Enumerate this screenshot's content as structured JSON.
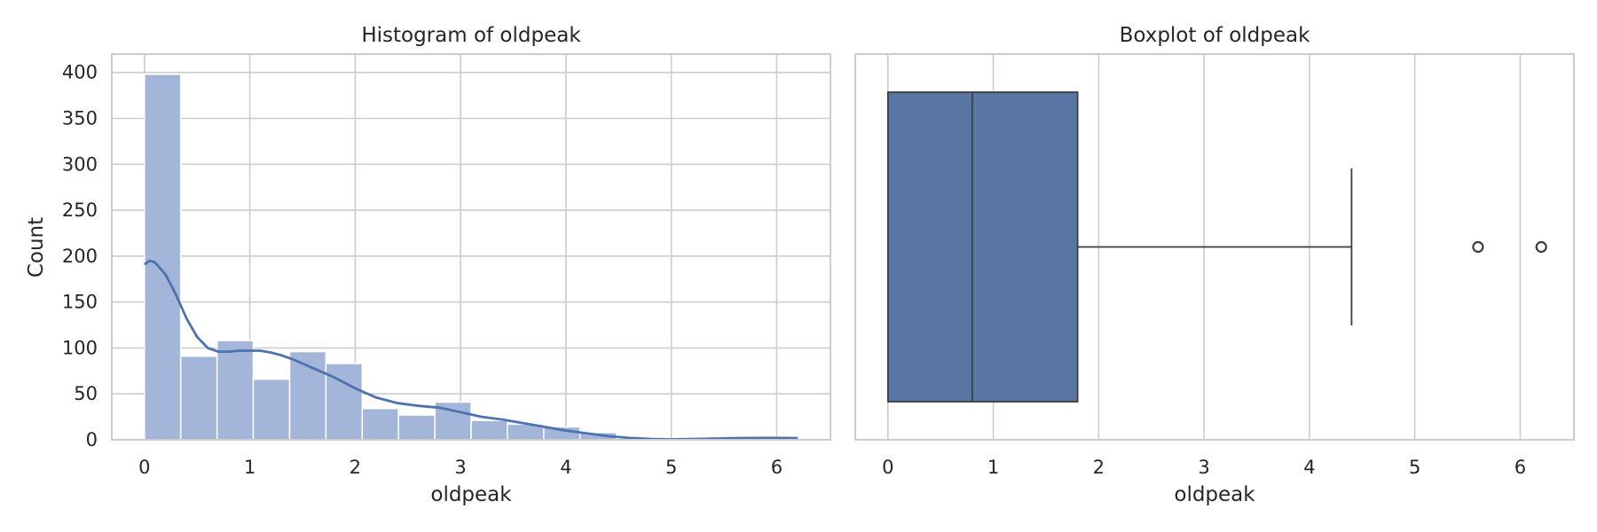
{
  "chart_data": [
    {
      "type": "bar",
      "subtype": "histogram",
      "title": "Histogram of oldpeak",
      "xlabel": "oldpeak",
      "ylabel": "Count",
      "xlim": [
        -0.31,
        6.51
      ],
      "ylim": [
        0,
        420
      ],
      "xticks": [
        0,
        1,
        2,
        3,
        4,
        5,
        6
      ],
      "yticks": [
        0,
        50,
        100,
        150,
        200,
        250,
        300,
        350,
        400
      ],
      "grid": true,
      "bar_color": "#a3b5d8",
      "kde_color": "#4c72b0",
      "bins": [
        {
          "x0": 0.0,
          "x1": 0.344,
          "count": 398
        },
        {
          "x0": 0.344,
          "x1": 0.689,
          "count": 91
        },
        {
          "x0": 0.689,
          "x1": 1.033,
          "count": 108
        },
        {
          "x0": 1.033,
          "x1": 1.378,
          "count": 66
        },
        {
          "x0": 1.378,
          "x1": 1.722,
          "count": 96
        },
        {
          "x0": 1.722,
          "x1": 2.067,
          "count": 83
        },
        {
          "x0": 2.067,
          "x1": 2.411,
          "count": 34
        },
        {
          "x0": 2.411,
          "x1": 2.756,
          "count": 27
        },
        {
          "x0": 2.756,
          "x1": 3.1,
          "count": 41
        },
        {
          "x0": 3.1,
          "x1": 3.444,
          "count": 21
        },
        {
          "x0": 3.444,
          "x1": 3.789,
          "count": 17
        },
        {
          "x0": 3.789,
          "x1": 4.133,
          "count": 14
        },
        {
          "x0": 4.133,
          "x1": 4.478,
          "count": 8
        },
        {
          "x0": 4.478,
          "x1": 4.822,
          "count": 0
        },
        {
          "x0": 4.822,
          "x1": 5.167,
          "count": 0
        },
        {
          "x0": 5.167,
          "x1": 5.511,
          "count": 1
        },
        {
          "x0": 5.511,
          "x1": 5.856,
          "count": 1
        },
        {
          "x0": 5.856,
          "x1": 6.2,
          "count": 1
        }
      ],
      "kde": {
        "x": [
          0.0,
          0.05,
          0.1,
          0.2,
          0.3,
          0.4,
          0.5,
          0.6,
          0.7,
          0.8,
          0.9,
          1.0,
          1.1,
          1.2,
          1.3,
          1.4,
          1.5,
          1.6,
          1.7,
          1.8,
          1.9,
          2.0,
          2.2,
          2.4,
          2.6,
          2.8,
          3.0,
          3.2,
          3.4,
          3.6,
          3.8,
          4.0,
          4.2,
          4.4,
          4.6,
          4.8,
          5.0,
          5.2,
          5.4,
          5.6,
          5.8,
          6.0,
          6.2
        ],
        "y": [
          191,
          195,
          193,
          180,
          158,
          132,
          112,
          100,
          96,
          96,
          97,
          97,
          97,
          95,
          92,
          88,
          83,
          78,
          73,
          68,
          62,
          56,
          46,
          40,
          37,
          35,
          30,
          25,
          22,
          18,
          14,
          10,
          7,
          4,
          2,
          1,
          0.5,
          0.8,
          1.3,
          1.8,
          2.0,
          2.0,
          1.8
        ]
      }
    },
    {
      "type": "box",
      "title": "Boxplot of oldpeak",
      "xlabel": "oldpeak",
      "xlim": [
        -0.31,
        6.51
      ],
      "xticks": [
        0,
        1,
        2,
        3,
        4,
        5,
        6
      ],
      "grid": true,
      "box_color": "#5875a4",
      "line_color": "#3d3d3d",
      "stats": {
        "min": 0,
        "q1": 0,
        "median": 0.8,
        "q3": 1.8,
        "whisker_low": 0,
        "whisker_high": 4.4
      },
      "outliers": [
        5.6,
        6.2
      ]
    }
  ]
}
